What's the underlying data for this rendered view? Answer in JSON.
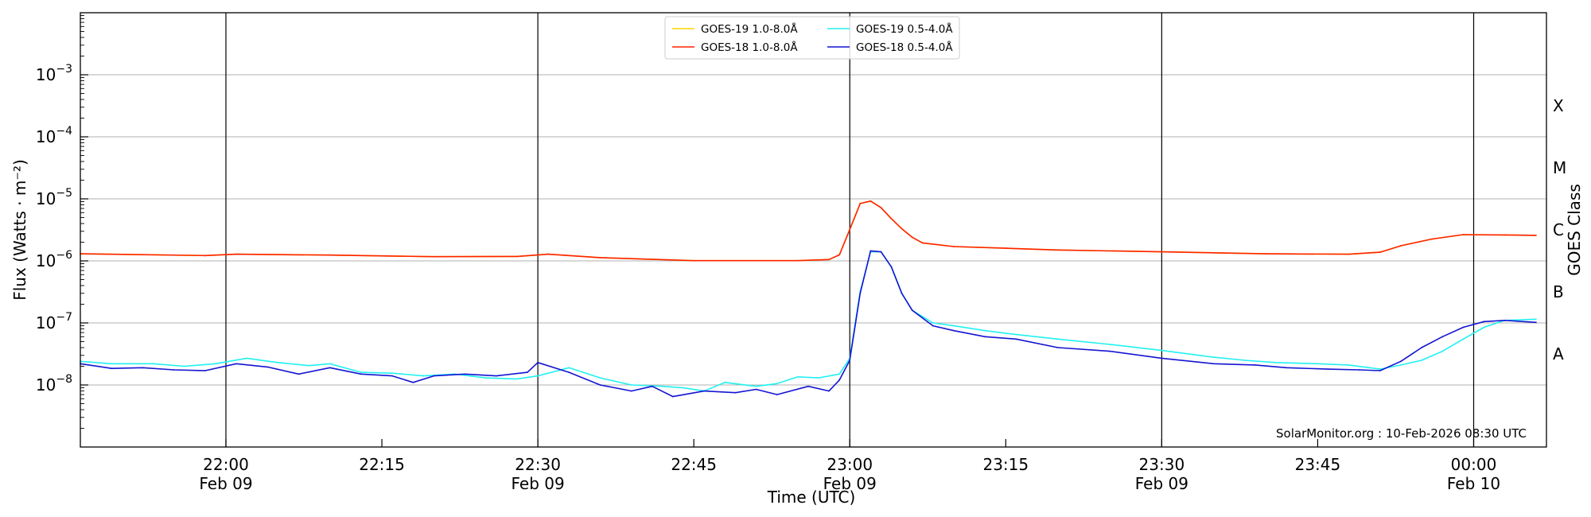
{
  "chart_data": {
    "type": "line",
    "xlabel": "Time (UTC)",
    "ylabel": "Flux (Watts · m⁻²)",
    "right_label": "GOES Class",
    "y_scale": "log",
    "ylim": [
      1e-09,
      0.01
    ],
    "xlim": [
      "2026-02-09T21:46:00Z",
      "2026-02-10T00:07:00Z"
    ],
    "grid": "horizontal major gridlines",
    "legend_position": "upper center",
    "credit": "SolarMonitor.org : 10-Feb-2026 08:30 UTC",
    "y_ticks": [
      {
        "value": 0.001,
        "mantissa": "10",
        "exp": "−3"
      },
      {
        "value": 0.0001,
        "mantissa": "10",
        "exp": "−4"
      },
      {
        "value": 1e-05,
        "mantissa": "10",
        "exp": "−5"
      },
      {
        "value": 1e-06,
        "mantissa": "10",
        "exp": "−6"
      },
      {
        "value": 1e-07,
        "mantissa": "10",
        "exp": "−7"
      },
      {
        "value": 1e-08,
        "mantissa": "10",
        "exp": "−8"
      }
    ],
    "x_ticks": [
      {
        "time": "2026-02-09T22:00:00Z",
        "label": "22:00",
        "date": "Feb 09",
        "event_line": true
      },
      {
        "time": "2026-02-09T22:15:00Z",
        "label": "22:15",
        "date": "",
        "event_line": false
      },
      {
        "time": "2026-02-09T22:30:00Z",
        "label": "22:30",
        "date": "Feb 09",
        "event_line": true
      },
      {
        "time": "2026-02-09T22:45:00Z",
        "label": "22:45",
        "date": "",
        "event_line": false
      },
      {
        "time": "2026-02-09T23:00:00Z",
        "label": "23:00",
        "date": "Feb 09",
        "event_line": true
      },
      {
        "time": "2026-02-09T23:15:00Z",
        "label": "23:15",
        "date": "",
        "event_line": false
      },
      {
        "time": "2026-02-09T23:30:00Z",
        "label": "23:30",
        "date": "Feb 09",
        "event_line": true
      },
      {
        "time": "2026-02-09T23:45:00Z",
        "label": "23:45",
        "date": "",
        "event_line": false
      },
      {
        "time": "2026-02-10T00:00:00Z",
        "label": "00:00",
        "date": "Feb 10",
        "event_line": true
      }
    ],
    "goes_classes": [
      {
        "label": "X",
        "flux": 0.0001
      },
      {
        "label": "M",
        "flux": 1e-05
      },
      {
        "label": "C",
        "flux": 1e-06
      },
      {
        "label": "B",
        "flux": 1e-07
      },
      {
        "label": "A",
        "flux": 1e-08
      }
    ],
    "series": [
      {
        "name": "GOES-19 1.0-8.0Å",
        "color": "#ffd700",
        "x": [
          "2026-02-09T21:46:00Z",
          "2026-02-09T21:58:00Z",
          "2026-02-09T22:01:00Z",
          "2026-02-09T22:10:00Z",
          "2026-02-09T22:20:00Z",
          "2026-02-09T22:28:00Z",
          "2026-02-09T22:31:00Z",
          "2026-02-09T22:36:00Z",
          "2026-02-09T22:45:00Z",
          "2026-02-09T22:55:00Z",
          "2026-02-09T22:58:00Z",
          "2026-02-09T22:59:00Z",
          "2026-02-09T23:00:00Z",
          "2026-02-09T23:01:00Z",
          "2026-02-09T23:02:00Z",
          "2026-02-09T23:03:00Z",
          "2026-02-09T23:04:00Z",
          "2026-02-09T23:05:00Z",
          "2026-02-09T23:06:00Z",
          "2026-02-09T23:07:00Z",
          "2026-02-09T23:10:00Z",
          "2026-02-09T23:15:00Z",
          "2026-02-09T23:20:00Z",
          "2026-02-09T23:30:00Z",
          "2026-02-09T23:40:00Z",
          "2026-02-09T23:48:00Z",
          "2026-02-09T23:51:00Z",
          "2026-02-09T23:53:00Z",
          "2026-02-09T23:56:00Z",
          "2026-02-09T23:59:00Z",
          "2026-02-10T00:03:00Z",
          "2026-02-10T00:06:00Z"
        ],
        "values": [
          1.3e-06,
          1.22e-06,
          1.28e-06,
          1.24e-06,
          1.17e-06,
          1.18e-06,
          1.28e-06,
          1.13e-06,
          1.01e-06,
          1.01e-06,
          1.05e-06,
          1.25e-06,
          3.2e-06,
          8.4e-06,
          9.2e-06,
          7.2e-06,
          4.8e-06,
          3.3e-06,
          2.4e-06,
          1.95e-06,
          1.7e-06,
          1.6e-06,
          1.5e-06,
          1.4e-06,
          1.3e-06,
          1.28e-06,
          1.38e-06,
          1.75e-06,
          2.25e-06,
          2.65e-06,
          2.62e-06,
          2.58e-06
        ]
      },
      {
        "name": "GOES-18 1.0-8.0Å",
        "color": "#ff2200",
        "x": [
          "2026-02-09T21:46:00Z",
          "2026-02-09T21:58:00Z",
          "2026-02-09T22:01:00Z",
          "2026-02-09T22:10:00Z",
          "2026-02-09T22:20:00Z",
          "2026-02-09T22:28:00Z",
          "2026-02-09T22:31:00Z",
          "2026-02-09T22:36:00Z",
          "2026-02-09T22:45:00Z",
          "2026-02-09T22:55:00Z",
          "2026-02-09T22:58:00Z",
          "2026-02-09T22:59:00Z",
          "2026-02-09T23:00:00Z",
          "2026-02-09T23:01:00Z",
          "2026-02-09T23:02:00Z",
          "2026-02-09T23:03:00Z",
          "2026-02-09T23:04:00Z",
          "2026-02-09T23:05:00Z",
          "2026-02-09T23:06:00Z",
          "2026-02-09T23:07:00Z",
          "2026-02-09T23:10:00Z",
          "2026-02-09T23:15:00Z",
          "2026-02-09T23:20:00Z",
          "2026-02-09T23:30:00Z",
          "2026-02-09T23:40:00Z",
          "2026-02-09T23:48:00Z",
          "2026-02-09T23:51:00Z",
          "2026-02-09T23:53:00Z",
          "2026-02-09T23:56:00Z",
          "2026-02-09T23:59:00Z",
          "2026-02-10T00:03:00Z",
          "2026-02-10T00:06:00Z"
        ],
        "values": [
          1.3e-06,
          1.22e-06,
          1.28e-06,
          1.24e-06,
          1.17e-06,
          1.18e-06,
          1.28e-06,
          1.13e-06,
          1.01e-06,
          1.01e-06,
          1.05e-06,
          1.25e-06,
          3.2e-06,
          8.4e-06,
          9.2e-06,
          7.2e-06,
          4.8e-06,
          3.3e-06,
          2.4e-06,
          1.95e-06,
          1.7e-06,
          1.6e-06,
          1.5e-06,
          1.4e-06,
          1.3e-06,
          1.28e-06,
          1.38e-06,
          1.75e-06,
          2.25e-06,
          2.65e-06,
          2.62e-06,
          2.58e-06
        ]
      },
      {
        "name": "GOES-19 0.5-4.0Å",
        "color": "#22f0f0",
        "x": [
          "2026-02-09T21:46:00Z",
          "2026-02-09T21:49:00Z",
          "2026-02-09T21:53:00Z",
          "2026-02-09T21:56:00Z",
          "2026-02-09T21:59:00Z",
          "2026-02-09T22:02:00Z",
          "2026-02-09T22:05:00Z",
          "2026-02-09T22:08:00Z",
          "2026-02-09T22:10:00Z",
          "2026-02-09T22:13:00Z",
          "2026-02-09T22:16:00Z",
          "2026-02-09T22:19:00Z",
          "2026-02-09T22:22:00Z",
          "2026-02-09T22:25:00Z",
          "2026-02-09T22:28:00Z",
          "2026-02-09T22:30:00Z",
          "2026-02-09T22:33:00Z",
          "2026-02-09T22:36:00Z",
          "2026-02-09T22:39:00Z",
          "2026-02-09T22:42:00Z",
          "2026-02-09T22:44:00Z",
          "2026-02-09T22:46:00Z",
          "2026-02-09T22:48:00Z",
          "2026-02-09T22:51:00Z",
          "2026-02-09T22:53:00Z",
          "2026-02-09T22:55:00Z",
          "2026-02-09T22:57:00Z",
          "2026-02-09T22:59:00Z",
          "2026-02-09T23:00:00Z",
          "2026-02-09T23:01:00Z",
          "2026-02-09T23:02:00Z",
          "2026-02-09T23:03:00Z",
          "2026-02-09T23:04:00Z",
          "2026-02-09T23:05:00Z",
          "2026-02-09T23:06:00Z",
          "2026-02-09T23:08:00Z",
          "2026-02-09T23:10:00Z",
          "2026-02-09T23:13:00Z",
          "2026-02-09T23:16:00Z",
          "2026-02-09T23:20:00Z",
          "2026-02-09T23:25:00Z",
          "2026-02-09T23:30:00Z",
          "2026-02-09T23:35:00Z",
          "2026-02-09T23:38:00Z",
          "2026-02-09T23:41:00Z",
          "2026-02-09T23:45:00Z",
          "2026-02-09T23:48:00Z",
          "2026-02-09T23:51:00Z",
          "2026-02-09T23:53:00Z",
          "2026-02-09T23:55:00Z",
          "2026-02-09T23:57:00Z",
          "2026-02-09T23:59:00Z",
          "2026-02-10T00:01:00Z",
          "2026-02-10T00:03:00Z",
          "2026-02-10T00:06:00Z"
        ],
        "values": [
          2.4e-08,
          2.2e-08,
          2.2e-08,
          2e-08,
          2.2e-08,
          2.7e-08,
          2.3e-08,
          2.05e-08,
          2.2e-08,
          1.6e-08,
          1.55e-08,
          1.4e-08,
          1.5e-08,
          1.3e-08,
          1.25e-08,
          1.4e-08,
          1.9e-08,
          1.3e-08,
          1e-08,
          9.5e-09,
          9e-09,
          8e-09,
          1.1e-08,
          9.5e-09,
          1.05e-08,
          1.35e-08,
          1.3e-08,
          1.5e-08,
          2.7e-08,
          3.2e-07,
          1.4e-06,
          1.4e-06,
          8e-07,
          3e-07,
          1.6e-07,
          1e-07,
          9e-08,
          7.5e-08,
          6.5e-08,
          5.5e-08,
          4.5e-08,
          3.6e-08,
          2.8e-08,
          2.5e-08,
          2.3e-08,
          2.2e-08,
          2.1e-08,
          1.8e-08,
          2.1e-08,
          2.5e-08,
          3.5e-08,
          5.5e-08,
          8.5e-08,
          1.1e-07,
          1.15e-07
        ]
      },
      {
        "name": "GOES-18 0.5-4.0Å",
        "color": "#1414d2",
        "x": [
          "2026-02-09T21:46:00Z",
          "2026-02-09T21:49:00Z",
          "2026-02-09T21:52:00Z",
          "2026-02-09T21:55:00Z",
          "2026-02-09T21:58:00Z",
          "2026-02-09T22:01:00Z",
          "2026-02-09T22:04:00Z",
          "2026-02-09T22:07:00Z",
          "2026-02-09T22:10:00Z",
          "2026-02-09T22:13:00Z",
          "2026-02-09T22:16:00Z",
          "2026-02-09T22:18:00Z",
          "2026-02-09T22:20:00Z",
          "2026-02-09T22:23:00Z",
          "2026-02-09T22:26:00Z",
          "2026-02-09T22:29:00Z",
          "2026-02-09T22:30:00Z",
          "2026-02-09T22:33:00Z",
          "2026-02-09T22:36:00Z",
          "2026-02-09T22:39:00Z",
          "2026-02-09T22:41:00Z",
          "2026-02-09T22:43:00Z",
          "2026-02-09T22:46:00Z",
          "2026-02-09T22:49:00Z",
          "2026-02-09T22:51:00Z",
          "2026-02-09T22:53:00Z",
          "2026-02-09T22:56:00Z",
          "2026-02-09T22:58:00Z",
          "2026-02-09T22:59:00Z",
          "2026-02-09T23:00:00Z",
          "2026-02-09T23:01:00Z",
          "2026-02-09T23:02:00Z",
          "2026-02-09T23:03:00Z",
          "2026-02-09T23:04:00Z",
          "2026-02-09T23:05:00Z",
          "2026-02-09T23:06:00Z",
          "2026-02-09T23:08:00Z",
          "2026-02-09T23:10:00Z",
          "2026-02-09T23:13:00Z",
          "2026-02-09T23:16:00Z",
          "2026-02-09T23:20:00Z",
          "2026-02-09T23:25:00Z",
          "2026-02-09T23:30:00Z",
          "2026-02-09T23:35:00Z",
          "2026-02-09T23:39:00Z",
          "2026-02-09T23:42:00Z",
          "2026-02-09T23:46:00Z",
          "2026-02-09T23:49:00Z",
          "2026-02-09T23:51:00Z",
          "2026-02-09T23:53:00Z",
          "2026-02-09T23:55:00Z",
          "2026-02-09T23:57:00Z",
          "2026-02-09T23:59:00Z",
          "2026-02-10T00:01:00Z",
          "2026-02-10T00:03:00Z",
          "2026-02-10T00:06:00Z"
        ],
        "values": [
          2.2e-08,
          1.85e-08,
          1.9e-08,
          1.75e-08,
          1.7e-08,
          2.2e-08,
          1.95e-08,
          1.5e-08,
          1.9e-08,
          1.5e-08,
          1.4e-08,
          1.1e-08,
          1.4e-08,
          1.5e-08,
          1.4e-08,
          1.6e-08,
          2.3e-08,
          1.6e-08,
          1e-08,
          8e-09,
          9.5e-09,
          6.5e-09,
          8e-09,
          7.5e-09,
          8.5e-09,
          7e-09,
          9.5e-09,
          8e-09,
          1.2e-08,
          2.5e-08,
          3e-07,
          1.45e-06,
          1.4e-06,
          8e-07,
          3e-07,
          1.6e-07,
          9e-08,
          7.5e-08,
          6e-08,
          5.5e-08,
          4e-08,
          3.5e-08,
          2.7e-08,
          2.2e-08,
          2.1e-08,
          1.9e-08,
          1.8e-08,
          1.75e-08,
          1.7e-08,
          2.4e-08,
          4e-08,
          6e-08,
          8.5e-08,
          1.05e-07,
          1.1e-07,
          1.02e-07
        ]
      }
    ]
  }
}
